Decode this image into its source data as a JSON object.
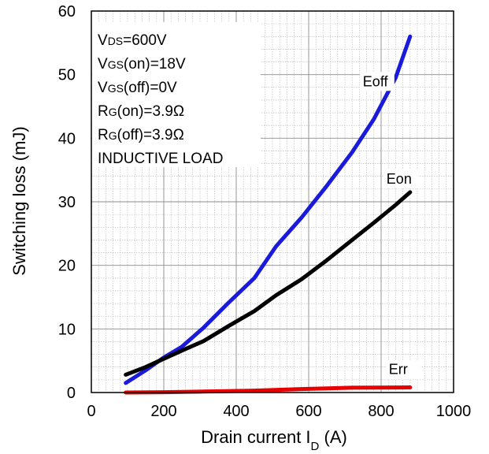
{
  "chart_data": {
    "type": "line",
    "xlabel": "Drain current I",
    "xlabel_sub": "D",
    "xlabel_unit": " (A)",
    "ylabel": "Switching loss (mJ)",
    "xlim": [
      0,
      1000
    ],
    "ylim": [
      0,
      60
    ],
    "xticks": [
      0,
      200,
      400,
      600,
      800,
      1000
    ],
    "yticks": [
      0,
      10,
      20,
      30,
      40,
      50,
      60
    ],
    "grid": true,
    "conditions": [
      {
        "pre": "V",
        "sub": "DS",
        "post": "=600V"
      },
      {
        "pre": "V",
        "sub": "GS",
        "post": "(on)=18V"
      },
      {
        "pre": "V",
        "sub": "GS",
        "post": "(off)=0V"
      },
      {
        "pre": "R",
        "sub": "G",
        "post": "(on)=3.9Ω"
      },
      {
        "pre": "R",
        "sub": "G",
        "post": "(off)=3.9Ω"
      },
      {
        "pre": "INDUCTIVE LOAD",
        "sub": "",
        "post": ""
      }
    ],
    "series": [
      {
        "name": "Eoff",
        "color": "#1a1adb",
        "x": [
          95,
          150,
          200,
          250,
          310,
          380,
          450,
          510,
          580,
          650,
          720,
          780,
          840,
          880
        ],
        "y": [
          1.5,
          3.5,
          5.5,
          7.2,
          10.2,
          14.2,
          18.0,
          23.0,
          27.5,
          32.5,
          37.8,
          43.0,
          49.5,
          56.0
        ]
      },
      {
        "name": "Eon",
        "color": "#000000",
        "x": [
          95,
          150,
          200,
          250,
          310,
          380,
          450,
          510,
          580,
          650,
          720,
          780,
          840,
          880
        ],
        "y": [
          2.8,
          4.0,
          5.3,
          6.6,
          8.1,
          10.5,
          12.8,
          15.3,
          17.8,
          20.8,
          24.0,
          26.7,
          29.5,
          31.5
        ]
      },
      {
        "name": "Err",
        "color": "#e60000",
        "x": [
          95,
          200,
          310,
          450,
          580,
          720,
          880
        ],
        "y": [
          0.0,
          0.05,
          0.15,
          0.3,
          0.55,
          0.75,
          0.8
        ]
      }
    ]
  }
}
